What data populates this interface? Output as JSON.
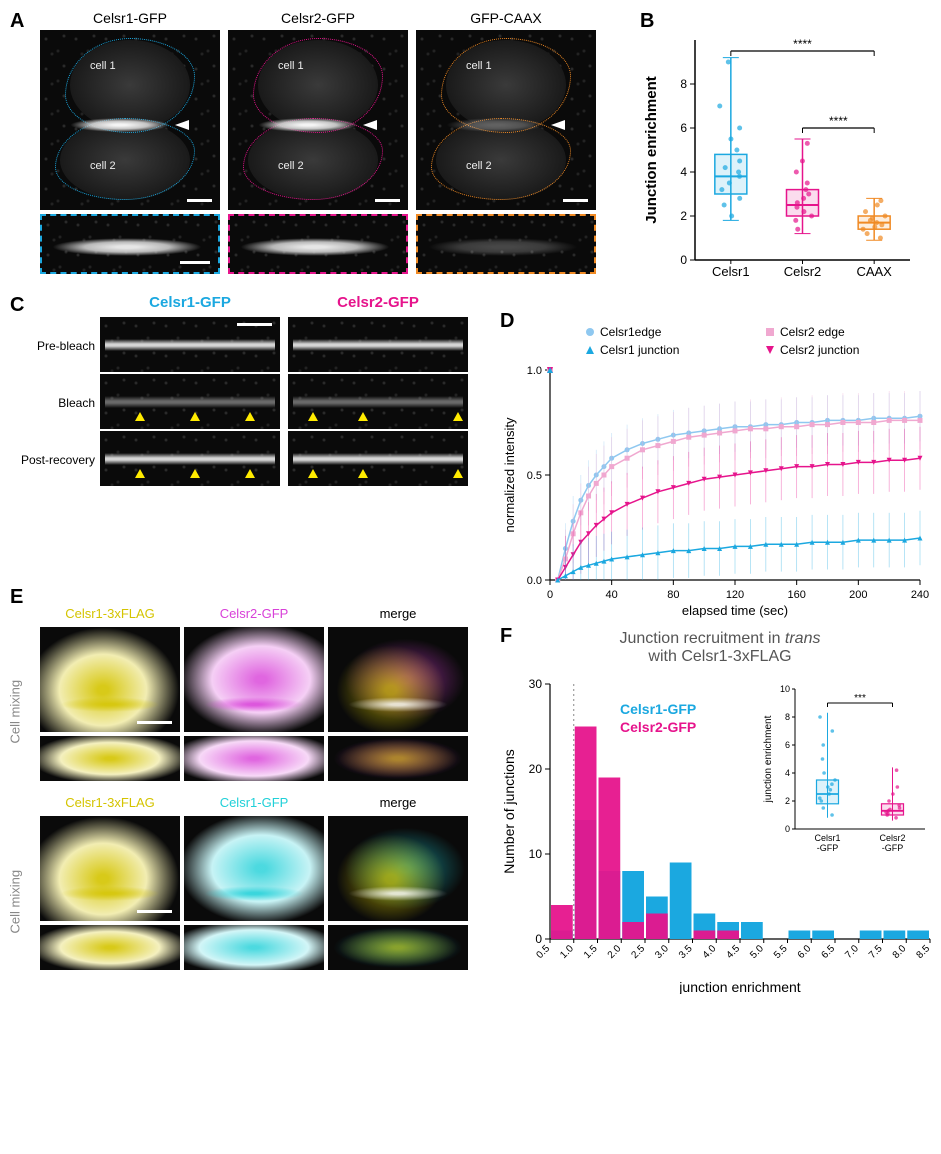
{
  "colors": {
    "celsr1": "#1ba8e0",
    "celsr2": "#e6148c",
    "caax": "#f08a24",
    "celsr1_edge": "#8fc8f0",
    "celsr2_edge": "#f0a8d0",
    "yellow": "#ffeb00",
    "yellow_dark": "#d4c400",
    "magenta": "#d840d8",
    "cyan": "#20d0d8",
    "gray_text": "#888888",
    "black": "#000000"
  },
  "panelA": {
    "label": "A",
    "columns": [
      {
        "title": "Celsr1-GFP",
        "outline_color": "#1ba8e0"
      },
      {
        "title": "Celsr2-GFP",
        "outline_color": "#e6148c"
      },
      {
        "title": "GFP-CAAX",
        "outline_color": "#f08a24"
      }
    ],
    "cell_labels": [
      "cell 1",
      "cell 2"
    ]
  },
  "panelB": {
    "label": "B",
    "ylabel": "Junction enrichment",
    "ylim": [
      0,
      10
    ],
    "yticks": [
      0,
      2,
      4,
      6,
      8
    ],
    "categories": [
      "Celsr1",
      "Celsr2",
      "CAAX"
    ],
    "box_data": [
      {
        "color": "#1ba8e0",
        "min": 1.8,
        "q1": 3.0,
        "median": 3.8,
        "q3": 4.8,
        "max": 9.2,
        "points": [
          2.0,
          2.5,
          2.8,
          3.2,
          3.5,
          3.8,
          4.0,
          4.2,
          4.5,
          5.0,
          5.5,
          6.0,
          7.0,
          9.0
        ]
      },
      {
        "color": "#e6148c",
        "min": 1.2,
        "q1": 2.0,
        "median": 2.5,
        "q3": 3.2,
        "max": 5.5,
        "points": [
          1.4,
          1.8,
          2.0,
          2.2,
          2.4,
          2.6,
          2.8,
          3.0,
          3.2,
          3.5,
          4.0,
          4.5,
          5.3
        ]
      },
      {
        "color": "#f08a24",
        "min": 0.9,
        "q1": 1.4,
        "median": 1.7,
        "q3": 2.0,
        "max": 2.8,
        "points": [
          1.0,
          1.2,
          1.4,
          1.5,
          1.6,
          1.7,
          1.8,
          1.9,
          2.0,
          2.2,
          2.5,
          2.7
        ]
      }
    ],
    "sig_bars": [
      {
        "from": 0,
        "to": 2,
        "y": 9.5,
        "label": "****"
      },
      {
        "from": 1,
        "to": 2,
        "y": 6.0,
        "label": "****"
      }
    ]
  },
  "panelC": {
    "label": "C",
    "columns": [
      {
        "title": "Celsr1-GFP",
        "color": "#1ba8e0"
      },
      {
        "title": "Celsr2-GFP",
        "color": "#e6148c"
      }
    ],
    "rows": [
      "Pre-bleach",
      "Bleach",
      "Post-recovery"
    ],
    "arrowheads_col1": [
      {
        "row": 1,
        "x": [
          35,
          90,
          145
        ]
      },
      {
        "row": 2,
        "x": [
          35,
          90,
          145
        ]
      }
    ],
    "arrowheads_col2": [
      {
        "row": 1,
        "x": [
          20,
          70,
          165
        ]
      },
      {
        "row": 2,
        "x": [
          20,
          70,
          165
        ]
      }
    ]
  },
  "panelD": {
    "label": "D",
    "xlabel": "elapsed time (sec)",
    "ylabel": "normalized intensity",
    "xlim": [
      0,
      240
    ],
    "ylim": [
      0,
      1.0
    ],
    "xticks": [
      0,
      40,
      80,
      120,
      160,
      200,
      240
    ],
    "yticks": [
      0,
      0.5,
      1.0
    ],
    "legend": [
      {
        "label": "Celsr1edge",
        "color": "#8fc8f0",
        "marker": "circle"
      },
      {
        "label": "Celsr2 edge",
        "color": "#f0a8d0",
        "marker": "square"
      },
      {
        "label": "Celsr1 junction",
        "color": "#1ba8e0",
        "marker": "triangle"
      },
      {
        "label": "Celsr2 junction",
        "color": "#e6148c",
        "marker": "triangle-down"
      }
    ],
    "series": {
      "celsr1_edge": {
        "color": "#8fc8f0",
        "marker": "circle",
        "x": [
          0,
          5,
          10,
          15,
          20,
          25,
          30,
          35,
          40,
          50,
          60,
          70,
          80,
          90,
          100,
          110,
          120,
          130,
          140,
          150,
          160,
          170,
          180,
          190,
          200,
          210,
          220,
          230,
          240
        ],
        "y": [
          1.0,
          0.0,
          0.15,
          0.28,
          0.38,
          0.45,
          0.5,
          0.54,
          0.58,
          0.62,
          0.65,
          0.67,
          0.69,
          0.7,
          0.71,
          0.72,
          0.73,
          0.73,
          0.74,
          0.74,
          0.75,
          0.75,
          0.76,
          0.76,
          0.76,
          0.77,
          0.77,
          0.77,
          0.78
        ],
        "err": 0.12
      },
      "celsr2_edge": {
        "color": "#f0a8d0",
        "marker": "square",
        "x": [
          0,
          5,
          10,
          15,
          20,
          25,
          30,
          35,
          40,
          50,
          60,
          70,
          80,
          90,
          100,
          110,
          120,
          130,
          140,
          150,
          160,
          170,
          180,
          190,
          200,
          210,
          220,
          230,
          240
        ],
        "y": [
          1.0,
          0.0,
          0.1,
          0.22,
          0.32,
          0.4,
          0.46,
          0.5,
          0.54,
          0.58,
          0.62,
          0.64,
          0.66,
          0.68,
          0.69,
          0.7,
          0.71,
          0.72,
          0.72,
          0.73,
          0.73,
          0.74,
          0.74,
          0.75,
          0.75,
          0.75,
          0.76,
          0.76,
          0.76
        ],
        "err": 0.14
      },
      "celsr2_junction": {
        "color": "#e6148c",
        "marker": "triangle-down",
        "x": [
          0,
          5,
          10,
          15,
          20,
          25,
          30,
          35,
          40,
          50,
          60,
          70,
          80,
          90,
          100,
          110,
          120,
          130,
          140,
          150,
          160,
          170,
          180,
          190,
          200,
          210,
          220,
          230,
          240
        ],
        "y": [
          1.0,
          0.0,
          0.06,
          0.12,
          0.18,
          0.22,
          0.26,
          0.29,
          0.32,
          0.36,
          0.39,
          0.42,
          0.44,
          0.46,
          0.48,
          0.49,
          0.5,
          0.51,
          0.52,
          0.53,
          0.54,
          0.54,
          0.55,
          0.55,
          0.56,
          0.56,
          0.57,
          0.57,
          0.58
        ],
        "err": 0.15
      },
      "celsr1_junction": {
        "color": "#1ba8e0",
        "marker": "triangle",
        "x": [
          0,
          5,
          10,
          15,
          20,
          25,
          30,
          35,
          40,
          50,
          60,
          70,
          80,
          90,
          100,
          110,
          120,
          130,
          140,
          150,
          160,
          170,
          180,
          190,
          200,
          210,
          220,
          230,
          240
        ],
        "y": [
          1.0,
          0.0,
          0.02,
          0.04,
          0.06,
          0.07,
          0.08,
          0.09,
          0.1,
          0.11,
          0.12,
          0.13,
          0.14,
          0.14,
          0.15,
          0.15,
          0.16,
          0.16,
          0.17,
          0.17,
          0.17,
          0.18,
          0.18,
          0.18,
          0.19,
          0.19,
          0.19,
          0.19,
          0.2
        ],
        "err": 0.13
      }
    }
  },
  "panelE": {
    "label": "E",
    "side_label": "Cell mixing",
    "top_row_titles": [
      "Celsr1-3xFLAG",
      "Celsr2-GFP",
      "merge"
    ],
    "bot_row_titles": [
      "Celsr1-3xFLAG",
      "Celsr1-GFP",
      "merge"
    ],
    "top_colors": [
      "#d4c400",
      "#d840d8",
      "merge"
    ],
    "bot_colors": [
      "#d4c400",
      "#20d0d8",
      "merge"
    ]
  },
  "panelF": {
    "label": "F",
    "title_line1": "Junction recruitment in ",
    "title_italic": "trans",
    "title_line2": "with Celsr1-3xFLAG",
    "xlabel": "junction enrichment",
    "ylabel": "Number of junctions",
    "legend": [
      {
        "label": "Celsr1-GFP",
        "color": "#1ba8e0"
      },
      {
        "label": "Celsr2-GFP",
        "color": "#e6148c"
      }
    ],
    "xlim": [
      0.5,
      8.5
    ],
    "ylim": [
      0,
      30
    ],
    "yticks": [
      0,
      10,
      20,
      30
    ],
    "bins": [
      "0.5",
      "1.0",
      "1.5",
      "2.0",
      "2.5",
      "3.0",
      "3.5",
      "4.0",
      "4.5",
      "5.0",
      "5.5",
      "6.0",
      "6.5",
      "7.0",
      "7.5",
      "8.0",
      "8.5"
    ],
    "celsr2_counts": [
      4,
      25,
      19,
      2,
      3,
      0,
      1,
      1,
      0,
      0,
      0,
      0,
      0,
      0,
      0,
      0
    ],
    "celsr1_counts": [
      1,
      14,
      8,
      8,
      5,
      9,
      3,
      2,
      2,
      0,
      1,
      1,
      0,
      1,
      1,
      1
    ],
    "dotted_line_x": 1.0,
    "inset": {
      "ylabel": "junction enrichment",
      "ylim": [
        0,
        10
      ],
      "yticks": [
        0,
        2,
        4,
        6,
        8,
        10
      ],
      "categories": [
        "Celsr1-GFP",
        "Celsr2-GFP"
      ],
      "sig": "***",
      "box_data": [
        {
          "color": "#1ba8e0",
          "min": 0.8,
          "q1": 1.8,
          "median": 2.5,
          "q3": 3.5,
          "max": 8.3,
          "points": [
            1.0,
            1.5,
            2.0,
            2.2,
            2.5,
            2.8,
            3.0,
            3.2,
            3.5,
            4.0,
            5.0,
            6.0,
            7.0,
            8.0
          ]
        },
        {
          "color": "#e6148c",
          "min": 0.6,
          "q1": 1.0,
          "median": 1.3,
          "q3": 1.8,
          "max": 4.4,
          "points": [
            0.8,
            1.0,
            1.1,
            1.2,
            1.3,
            1.4,
            1.5,
            1.7,
            2.0,
            2.5,
            3.0,
            4.2
          ]
        }
      ]
    }
  }
}
